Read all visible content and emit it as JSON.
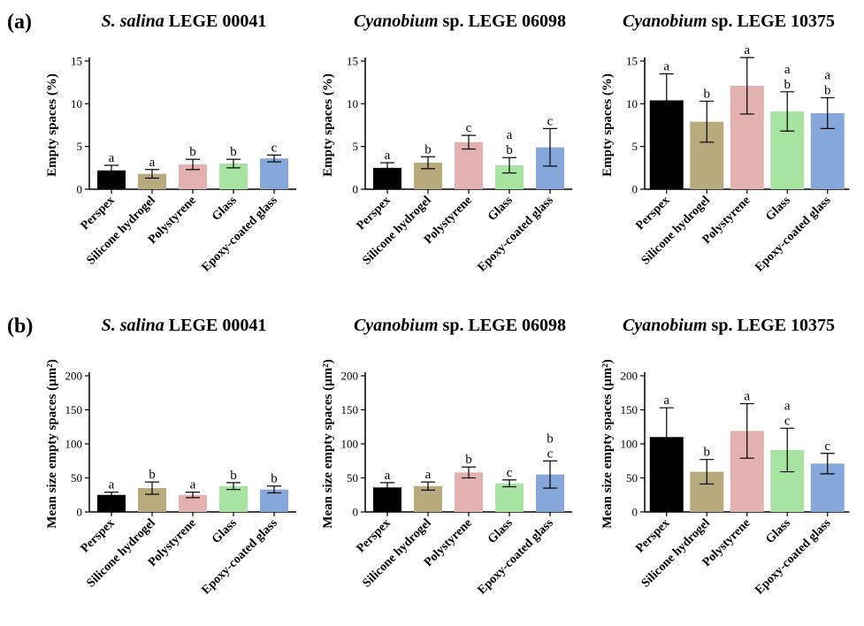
{
  "figure": {
    "panel_labels": [
      "(a)",
      "(b)"
    ]
  },
  "colors": {
    "Perspex": "#000000",
    "Silicone hydrogel": "#B7AA7C",
    "Polystyrene": "#E2B1B0",
    "Glass": "#A7E4A2",
    "Epoxy-coated glass": "#86A7D9"
  },
  "chart_data": [
    {
      "type": "bar",
      "panel": "(a)",
      "title_italic": "S. salina",
      "title_rest": " LEGE 00041",
      "ylabel": "Empty spaces (%)",
      "categories": [
        "Perspex",
        "Silicone hydrogel",
        "Polystyrene",
        "Glass",
        "Epoxy-coated glass"
      ],
      "values": [
        2.2,
        1.8,
        2.9,
        3.0,
        3.6
      ],
      "errors": [
        0.6,
        0.5,
        0.6,
        0.5,
        0.4
      ],
      "letters": [
        [
          "a"
        ],
        [
          "a"
        ],
        [
          "b"
        ],
        [
          "b"
        ],
        [
          "c"
        ]
      ],
      "ylim": [
        0,
        15
      ],
      "yticks": [
        0,
        5,
        10,
        15
      ]
    },
    {
      "type": "bar",
      "panel": "(a)",
      "title_italic": "Cyanobium",
      "title_rest": " sp. LEGE 06098",
      "ylabel": "Empty spaces (%)",
      "categories": [
        "Perspex",
        "Silicone hydrogel",
        "Polystyrene",
        "Glass",
        "Epoxy-coated glass"
      ],
      "values": [
        2.5,
        3.1,
        5.5,
        2.8,
        4.9
      ],
      "errors": [
        0.6,
        0.7,
        0.8,
        0.9,
        2.2
      ],
      "letters": [
        [
          "a"
        ],
        [
          "b"
        ],
        [
          "c"
        ],
        [
          "a",
          "b"
        ],
        [
          "c"
        ]
      ],
      "ylim": [
        0,
        15
      ],
      "yticks": [
        0,
        5,
        10,
        15
      ]
    },
    {
      "type": "bar",
      "panel": "(a)",
      "title_italic": "Cyanobium",
      "title_rest": " sp. LEGE 10375",
      "ylabel": "Empty spaces (%)",
      "categories": [
        "Perspex",
        "Silicone hydrogel",
        "Polystyrene",
        "Glass",
        "Epoxy-coated glass"
      ],
      "values": [
        10.4,
        7.9,
        12.1,
        9.1,
        8.9
      ],
      "errors": [
        3.1,
        2.4,
        3.3,
        2.3,
        1.8
      ],
      "letters": [
        [
          "a"
        ],
        [
          "b"
        ],
        [
          "a"
        ],
        [
          "a",
          "b"
        ],
        [
          "a",
          "b"
        ]
      ],
      "ylim": [
        0,
        15
      ],
      "yticks": [
        0,
        5,
        10,
        15
      ]
    },
    {
      "type": "bar",
      "panel": "(b)",
      "title_italic": "S. salina",
      "title_rest": " LEGE 00041",
      "ylabel": "Mean size empty spaces (µm²)",
      "categories": [
        "Perspex",
        "Silicone hydrogel",
        "Polystyrene",
        "Glass",
        "Epoxy-coated glass"
      ],
      "values": [
        25,
        35,
        25,
        38,
        33
      ],
      "errors": [
        4,
        9,
        4,
        5,
        5
      ],
      "letters": [
        [
          "a"
        ],
        [
          "b"
        ],
        [
          "a"
        ],
        [
          "b"
        ],
        [
          "b"
        ]
      ],
      "ylim": [
        0,
        200
      ],
      "yticks": [
        0,
        50,
        100,
        150,
        200
      ]
    },
    {
      "type": "bar",
      "panel": "(b)",
      "title_italic": "Cyanobium",
      "title_rest": " sp. LEGE 06098",
      "ylabel": "Mean size empty spaces (µm²)",
      "categories": [
        "Perspex",
        "Silicone hydrogel",
        "Polystyrene",
        "Glass",
        "Epoxy-coated glass"
      ],
      "values": [
        36,
        38,
        58,
        42,
        55
      ],
      "errors": [
        7,
        6,
        8,
        5,
        20
      ],
      "letters": [
        [
          "a"
        ],
        [
          "a"
        ],
        [
          "b"
        ],
        [
          "c"
        ],
        [
          "b",
          "c"
        ]
      ],
      "ylim": [
        0,
        200
      ],
      "yticks": [
        0,
        50,
        100,
        150,
        200
      ]
    },
    {
      "type": "bar",
      "panel": "(b)",
      "title_italic": "Cyanobium",
      "title_rest": " sp. LEGE 10375",
      "ylabel": "Mean size empty spaces (µm²)",
      "categories": [
        "Perspex",
        "Silicone hydrogel",
        "Polystyrene",
        "Glass",
        "Epoxy-coated glass"
      ],
      "values": [
        110,
        59,
        119,
        91,
        71
      ],
      "errors": [
        43,
        18,
        40,
        32,
        15
      ],
      "letters": [
        [
          "a"
        ],
        [
          "b"
        ],
        [
          "a"
        ],
        [
          "a",
          "c"
        ],
        [
          "c"
        ]
      ],
      "ylim": [
        0,
        200
      ],
      "yticks": [
        0,
        50,
        100,
        150,
        200
      ]
    }
  ]
}
